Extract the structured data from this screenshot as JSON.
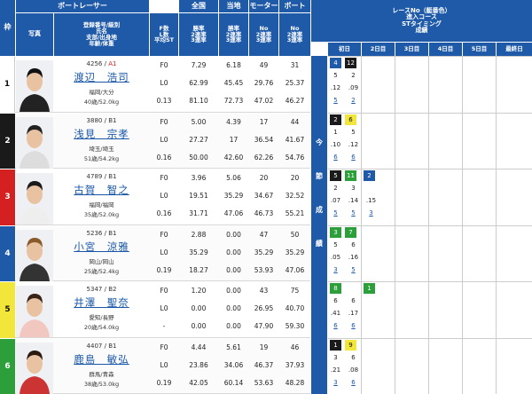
{
  "header": {
    "waku": "枠",
    "photo": "写真",
    "boat_racer": "ボートレーサー",
    "national": "全国",
    "local": "当地",
    "motor": "モーター",
    "boat": "ボート",
    "info_lines": [
      "登録番号/級別",
      "氏名",
      "支部/出身地",
      "年齢/体重"
    ],
    "stats_labels": [
      "F数",
      "L数",
      "平均ST"
    ],
    "national_labels": [
      "勝率",
      "2連率",
      "3連率"
    ],
    "local_labels": [
      "勝率",
      "2連率",
      "3連率"
    ],
    "motor_labels": [
      "No",
      "2連率",
      "3連率"
    ],
    "boat_labels": [
      "No",
      "2連率",
      "3連率"
    ],
    "right_title_lines": [
      "レースNo（艇番色）",
      "進入コース",
      "STタイミング",
      "成績"
    ],
    "days": [
      "初日",
      "2日目",
      "3日目",
      "4日目",
      "5日目",
      "最終日"
    ],
    "konsetsu": [
      "今",
      "節",
      "成",
      "績"
    ]
  },
  "racers": [
    {
      "waku": "1",
      "reg": "4256",
      "class": "A1",
      "name": "渡辺　浩司",
      "branch": "福岡/大分",
      "age_weight": "40歳/52.0kg",
      "f": "F0",
      "l": "L0",
      "st": "0.13",
      "national": [
        "7.29",
        "62.99",
        "81.10"
      ],
      "local": [
        "6.18",
        "45.45",
        "72.73"
      ],
      "motor": [
        "49",
        "29.76",
        "47.02"
      ],
      "boat": [
        "31",
        "25.37",
        "46.27"
      ],
      "results": [
        {
          "race": "4",
          "course": "12",
          "top": "",
          "st1": ".12",
          "st2": ".09",
          "r1": "5",
          "r2": "2",
          "r1c": "1",
          "r2c": "2",
          "rank1": "",
          "rank2": ""
        }
      ]
    },
    {
      "waku": "2",
      "reg": "3880",
      "class": "B1",
      "name": "浅見　宗孝",
      "branch": "埼玉/埼玉",
      "age_weight": "51歳/54.2kg",
      "f": "F0",
      "l": "L0",
      "st": "0.16",
      "national": [
        "5.00",
        "27.27",
        "50.00"
      ],
      "local": [
        "4.39",
        "17",
        "42.60"
      ],
      "motor": [
        "17",
        "36.54",
        "62.26"
      ],
      "boat": [
        "44",
        "41.67",
        "54.76"
      ],
      "results": []
    },
    {
      "waku": "3",
      "reg": "4789",
      "class": "B1",
      "name": "古賀　智之",
      "branch": "福岡/福岡",
      "age_weight": "35歳/52.0kg",
      "f": "F0",
      "l": "L0",
      "st": "0.16",
      "national": [
        "3.96",
        "19.51",
        "31.71"
      ],
      "local": [
        "5.06",
        "35.29",
        "47.06"
      ],
      "motor": [
        "20",
        "34.67",
        "46.73"
      ],
      "boat": [
        "20",
        "32.52",
        "55.21"
      ],
      "results": []
    },
    {
      "waku": "4",
      "reg": "5236",
      "class": "B1",
      "name": "小宮　涼雅",
      "branch": "岡山/岡山",
      "age_weight": "25歳/52.4kg",
      "f": "F0",
      "l": "L0",
      "st": "0.19",
      "national": [
        "2.88",
        "35.29",
        "18.27"
      ],
      "local": [
        "0.00",
        "0.00",
        "0.00"
      ],
      "motor": [
        "47",
        "35.29",
        "53.93"
      ],
      "boat": [
        "50",
        "35.29",
        "47.06"
      ],
      "results": []
    },
    {
      "waku": "5",
      "reg": "5347",
      "class": "B2",
      "name": "井澤　聖奈",
      "branch": "愛知/長野",
      "age_weight": "20歳/54.0kg",
      "f": "F0",
      "l": "L0",
      "st": "-",
      "national": [
        "1.20",
        "0.00",
        "0.00"
      ],
      "local": [
        "0.00",
        "0.00",
        "0.00"
      ],
      "motor": [
        "43",
        "26.95",
        "47.90"
      ],
      "boat": [
        "75",
        "40.70",
        "59.30"
      ],
      "results": []
    },
    {
      "waku": "6",
      "reg": "4407",
      "class": "B1",
      "name": "鹿島　敏弘",
      "branch": "群馬/青森",
      "age_weight": "38歳/53.0kg",
      "f": "F0",
      "l": "L0",
      "st": "0.19",
      "national": [
        "4.44",
        "23.86",
        "42.05"
      ],
      "local": [
        "5.61",
        "34.06",
        "60.14"
      ],
      "motor": [
        "19",
        "46.37",
        "53.63"
      ],
      "boat": [
        "46",
        "37.93",
        "48.28"
      ],
      "results": []
    }
  ],
  "right_results": [
    {
      "d1": {
        "race": "4",
        "rc": "c4",
        "course": "12",
        "cc": "c2",
        "st_a": "5",
        "st_b": "2",
        "st1": ".12",
        "st2": ".09",
        "res1": "5",
        "res2": "2"
      }
    },
    {
      "d1": {
        "race": "2",
        "rc": "c2",
        "course": "6",
        "cc": "rk1",
        "st_a": "1",
        "st_b": "5",
        "st1": ".10",
        "st2": ".12",
        "res1": "6",
        "res2": "6"
      }
    },
    {
      "d1": {
        "race": "5",
        "rc": "c2",
        "course": "11",
        "cc": "c6",
        "extra": "2",
        "ec": "c4",
        "st_a": "2",
        "st_b": "3",
        "st1": ".07",
        "st2": ".14",
        "st3": ".15",
        "res1": "5",
        "res2": "5",
        "res3": "3"
      }
    },
    {
      "d1": {
        "race": "3",
        "rc": "c6",
        "course": "7",
        "cc": "c6",
        "st_a": "5",
        "st_b": "6",
        "st1": ".05",
        "st2": ".16",
        "res1": "3",
        "res2": "5"
      }
    },
    {
      "d1": {
        "race": "8",
        "rc": "c6",
        "course": "",
        "cc": "",
        "extra": "1",
        "ec": "c6",
        "st_a": "6",
        "st_b": "6",
        "st1": ".41",
        "st2": ".17",
        "res1": "6",
        "res2": "6"
      }
    },
    {
      "d1": {
        "race": "1",
        "rc": "c2",
        "course": "9",
        "cc": "rk1",
        "st_a": "3",
        "st_b": "6",
        "st1": ".21",
        "st2": ".08",
        "res1": "3",
        "res2": "6"
      }
    }
  ]
}
